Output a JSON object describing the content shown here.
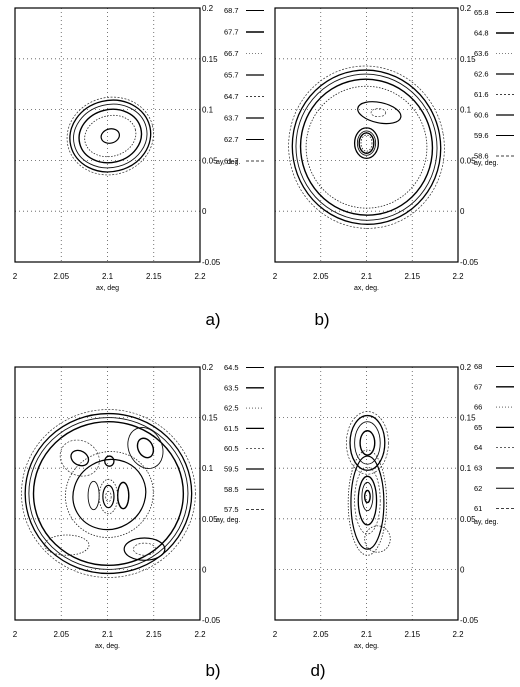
{
  "chart_data": [
    {
      "type": "contour",
      "caption": "a)",
      "xlabel": "ax, deg",
      "ylabel": "ay, deg.",
      "xlim": [
        2,
        2.2
      ],
      "ylim": [
        -0.05,
        0.2
      ],
      "x_ticks": [
        "2",
        "2.05",
        "2.1",
        "2.15",
        "2.2"
      ],
      "y_ticks": [
        "0.2",
        "0.15",
        "0.1",
        "0.05",
        "0",
        "-0.05"
      ],
      "grid": true,
      "legend_position": "right",
      "legend": [
        "68.7",
        "67.7",
        "66.7",
        "65.7",
        "64.7",
        "63.7",
        "62.7",
        "61.7"
      ],
      "contours": [
        {
          "cx": 2.103,
          "cy": 0.074,
          "rx": 0.047,
          "ry": 0.038,
          "rot": 14
        },
        {
          "cx": 2.103,
          "cy": 0.074,
          "rx": 0.044,
          "ry": 0.035,
          "rot": 14
        },
        {
          "cx": 2.103,
          "cy": 0.074,
          "rx": 0.04,
          "ry": 0.031,
          "rot": 14
        },
        {
          "cx": 2.103,
          "cy": 0.074,
          "rx": 0.034,
          "ry": 0.026,
          "rot": 14
        },
        {
          "cx": 2.103,
          "cy": 0.074,
          "rx": 0.028,
          "ry": 0.02,
          "rot": 14
        },
        {
          "cx": 2.103,
          "cy": 0.074,
          "rx": 0.01,
          "ry": 0.007,
          "rot": 14
        }
      ]
    },
    {
      "type": "contour",
      "caption": "b)",
      "xlabel": "ax, deg.",
      "ylabel": "ay, deg.",
      "xlim": [
        2,
        2.2
      ],
      "ylim": [
        -0.05,
        0.2
      ],
      "x_ticks": [
        "2",
        "2.05",
        "2.1",
        "2.15",
        "2.2"
      ],
      "y_ticks": [
        "0.2",
        "0.15",
        "0.1",
        "0.05",
        "0",
        "-0.05"
      ],
      "grid": true,
      "legend_position": "right",
      "legend": [
        "65.8",
        "64.8",
        "63.6",
        "62.6",
        "61.6",
        "60.6",
        "59.6",
        "58.6"
      ],
      "contours": [
        {
          "cx": 2.1,
          "cy": 0.063,
          "rx": 0.085,
          "ry": 0.08,
          "rot": 10
        },
        {
          "cx": 2.1,
          "cy": 0.063,
          "rx": 0.081,
          "ry": 0.076,
          "rot": 10
        },
        {
          "cx": 2.1,
          "cy": 0.063,
          "rx": 0.077,
          "ry": 0.072,
          "rot": 10
        },
        {
          "cx": 2.1,
          "cy": 0.063,
          "rx": 0.072,
          "ry": 0.067,
          "rot": 10
        },
        {
          "cx": 2.1,
          "cy": 0.063,
          "rx": 0.066,
          "ry": 0.06,
          "rot": 10
        },
        {
          "cx": 2.114,
          "cy": 0.097,
          "rx": 0.024,
          "ry": 0.01,
          "rot": -12
        },
        {
          "cx": 2.113,
          "cy": 0.097,
          "rx": 0.008,
          "ry": 0.004,
          "rot": 0
        },
        {
          "cx": 2.1,
          "cy": 0.067,
          "rx": 0.013,
          "ry": 0.015,
          "rot": 0
        },
        {
          "cx": 2.1,
          "cy": 0.067,
          "rx": 0.01,
          "ry": 0.012,
          "rot": 0
        },
        {
          "cx": 2.1,
          "cy": 0.067,
          "rx": 0.008,
          "ry": 0.01,
          "rot": 0
        },
        {
          "cx": 2.1,
          "cy": 0.067,
          "rx": 0.006,
          "ry": 0.008,
          "rot": 0
        }
      ]
    },
    {
      "type": "contour",
      "caption": "b)",
      "xlabel": "ax, deg.",
      "ylabel": "ay, deg.",
      "xlim": [
        2,
        2.2
      ],
      "ylim": [
        -0.05,
        0.2
      ],
      "x_ticks": [
        "2",
        "2.05",
        "2.1",
        "2.15",
        "2.2"
      ],
      "y_ticks": [
        "0.2",
        "0.15",
        "0.1",
        "0.05",
        "0",
        "-0.05"
      ],
      "grid": true,
      "legend_position": "right",
      "legend": [
        "64.5",
        "63.5",
        "62.5",
        "61.5",
        "60.5",
        "59.5",
        "58.5",
        "57.5"
      ],
      "contours": [
        {
          "cx": 2.101,
          "cy": 0.075,
          "rx": 0.094,
          "ry": 0.083,
          "rot": 0
        },
        {
          "cx": 2.101,
          "cy": 0.075,
          "rx": 0.09,
          "ry": 0.079,
          "rot": 0
        },
        {
          "cx": 2.101,
          "cy": 0.075,
          "rx": 0.086,
          "ry": 0.075,
          "rot": 0
        },
        {
          "cx": 2.101,
          "cy": 0.075,
          "rx": 0.081,
          "ry": 0.071,
          "rot": 0
        },
        {
          "cx": 2.102,
          "cy": 0.074,
          "rx": 0.048,
          "ry": 0.042,
          "rot": 30
        },
        {
          "cx": 2.102,
          "cy": 0.074,
          "rx": 0.04,
          "ry": 0.034,
          "rot": 30
        },
        {
          "cx": 2.07,
          "cy": 0.11,
          "rx": 0.022,
          "ry": 0.017,
          "rot": -30
        },
        {
          "cx": 2.07,
          "cy": 0.11,
          "rx": 0.01,
          "ry": 0.007,
          "rot": -30
        },
        {
          "cx": 2.141,
          "cy": 0.12,
          "rx": 0.018,
          "ry": 0.021,
          "rot": 25
        },
        {
          "cx": 2.141,
          "cy": 0.12,
          "rx": 0.008,
          "ry": 0.01,
          "rot": 25
        },
        {
          "cx": 2.056,
          "cy": 0.024,
          "rx": 0.024,
          "ry": 0.01,
          "rot": 0
        },
        {
          "cx": 2.14,
          "cy": 0.02,
          "rx": 0.022,
          "ry": 0.011,
          "rot": 0
        },
        {
          "cx": 2.14,
          "cy": 0.02,
          "rx": 0.012,
          "ry": 0.006,
          "rot": 0
        },
        {
          "cx": 2.102,
          "cy": 0.107,
          "rx": 0.005,
          "ry": 0.005,
          "rot": 0
        },
        {
          "cx": 2.085,
          "cy": 0.073,
          "rx": 0.006,
          "ry": 0.014,
          "rot": 0
        },
        {
          "cx": 2.117,
          "cy": 0.073,
          "rx": 0.006,
          "ry": 0.013,
          "rot": 0
        },
        {
          "cx": 2.101,
          "cy": 0.072,
          "rx": 0.01,
          "ry": 0.017,
          "rot": 0
        },
        {
          "cx": 2.101,
          "cy": 0.072,
          "rx": 0.006,
          "ry": 0.011,
          "rot": 0
        },
        {
          "cx": 2.101,
          "cy": 0.072,
          "rx": 0.003,
          "ry": 0.005,
          "rot": 0
        }
      ]
    },
    {
      "type": "contour",
      "caption": "d)",
      "xlabel": "ax, deg.",
      "ylabel": "ay, deg.",
      "xlim": [
        2,
        2.2
      ],
      "ylim": [
        -0.05,
        0.2
      ],
      "x_ticks": [
        "2",
        "2.05",
        "2.1",
        "2.15",
        "2.2"
      ],
      "y_ticks": [
        "0.2",
        "0.15",
        "0.1",
        "0.05",
        "0",
        "-0.05"
      ],
      "grid": true,
      "legend_position": "right",
      "legend": [
        "68",
        "67",
        "66",
        "65",
        "64",
        "63",
        "62",
        "61"
      ],
      "contours": [
        {
          "cx": 2.101,
          "cy": 0.125,
          "rx": 0.023,
          "ry": 0.031,
          "rot": 0
        },
        {
          "cx": 2.101,
          "cy": 0.125,
          "rx": 0.019,
          "ry": 0.027,
          "rot": 0
        },
        {
          "cx": 2.101,
          "cy": 0.125,
          "rx": 0.014,
          "ry": 0.021,
          "rot": 0
        },
        {
          "cx": 2.101,
          "cy": 0.125,
          "rx": 0.008,
          "ry": 0.012,
          "rot": 0
        },
        {
          "cx": 2.101,
          "cy": 0.066,
          "rx": 0.021,
          "ry": 0.052,
          "rot": 0
        },
        {
          "cx": 2.101,
          "cy": 0.066,
          "rx": 0.018,
          "ry": 0.046,
          "rot": 0
        },
        {
          "cx": 2.101,
          "cy": 0.068,
          "rx": 0.014,
          "ry": 0.033,
          "rot": 0
        },
        {
          "cx": 2.101,
          "cy": 0.068,
          "rx": 0.01,
          "ry": 0.024,
          "rot": 0
        },
        {
          "cx": 2.101,
          "cy": 0.072,
          "rx": 0.006,
          "ry": 0.014,
          "rot": 0
        },
        {
          "cx": 2.101,
          "cy": 0.072,
          "rx": 0.003,
          "ry": 0.006,
          "rot": 0
        },
        {
          "cx": 2.112,
          "cy": 0.03,
          "rx": 0.014,
          "ry": 0.013,
          "rot": 0
        }
      ]
    }
  ]
}
